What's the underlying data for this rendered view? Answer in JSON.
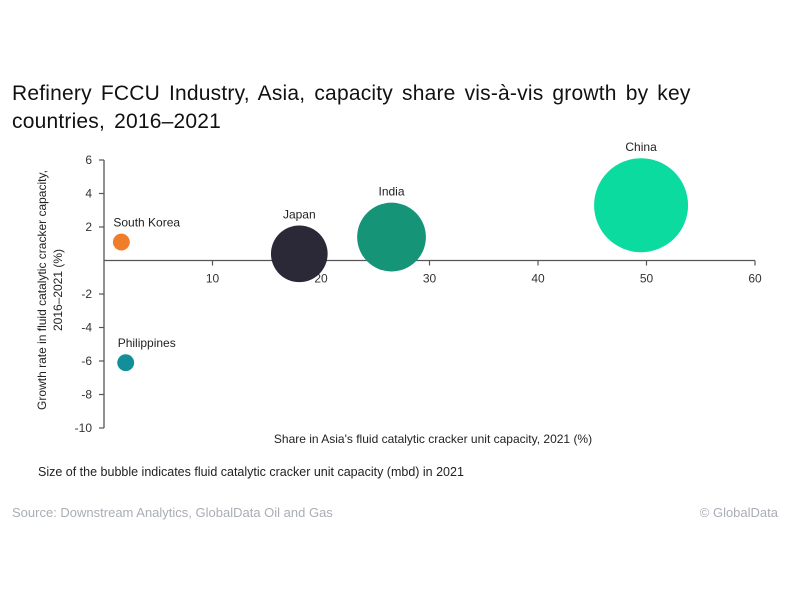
{
  "title": "Refinery FCCU Industry, Asia, capacity share vis-à-vis growth by key countries, 2016–2021",
  "note": "Size of the bubble indicates fluid catalytic cracker unit capacity (mbd) in 2021",
  "source": "Source: Downstream Analytics, GlobalData Oil and Gas",
  "copyright": "© GlobalData",
  "chart_data": {
    "type": "scatter",
    "subtype": "bubble",
    "title": "Refinery FCCU Industry, Asia, capacity share vis-à-vis growth by key countries, 2016–2021",
    "xlabel": "Share in Asia's fluid catalytic cracker unit capacity, 2021 (%)",
    "ylabel_lines": [
      "Growth rate in fluid catalytic cracker capacity,",
      "2016–2021 (%)"
    ],
    "xlim": [
      0,
      60
    ],
    "ylim": [
      -10,
      6
    ],
    "xticks": [
      10,
      20,
      30,
      40,
      50,
      60
    ],
    "yticks": [
      6,
      4,
      2,
      -2,
      -4,
      -6,
      -8,
      -10
    ],
    "grid": false,
    "series": [
      {
        "name": "South Korea",
        "x": 1.6,
        "y": 1.1,
        "size": 1.6,
        "color": "#f07d2a"
      },
      {
        "name": "Philippines",
        "x": 2.0,
        "y": -6.1,
        "size": 1.6,
        "color": "#138f99"
      },
      {
        "name": "Japan",
        "x": 18.0,
        "y": 0.4,
        "size": 18.0,
        "color": "#2b2838"
      },
      {
        "name": "India",
        "x": 26.5,
        "y": 1.4,
        "size": 26.5,
        "color": "#159477"
      },
      {
        "name": "China",
        "x": 49.5,
        "y": 3.3,
        "size": 49.5,
        "color": "#0cdba0"
      }
    ]
  }
}
